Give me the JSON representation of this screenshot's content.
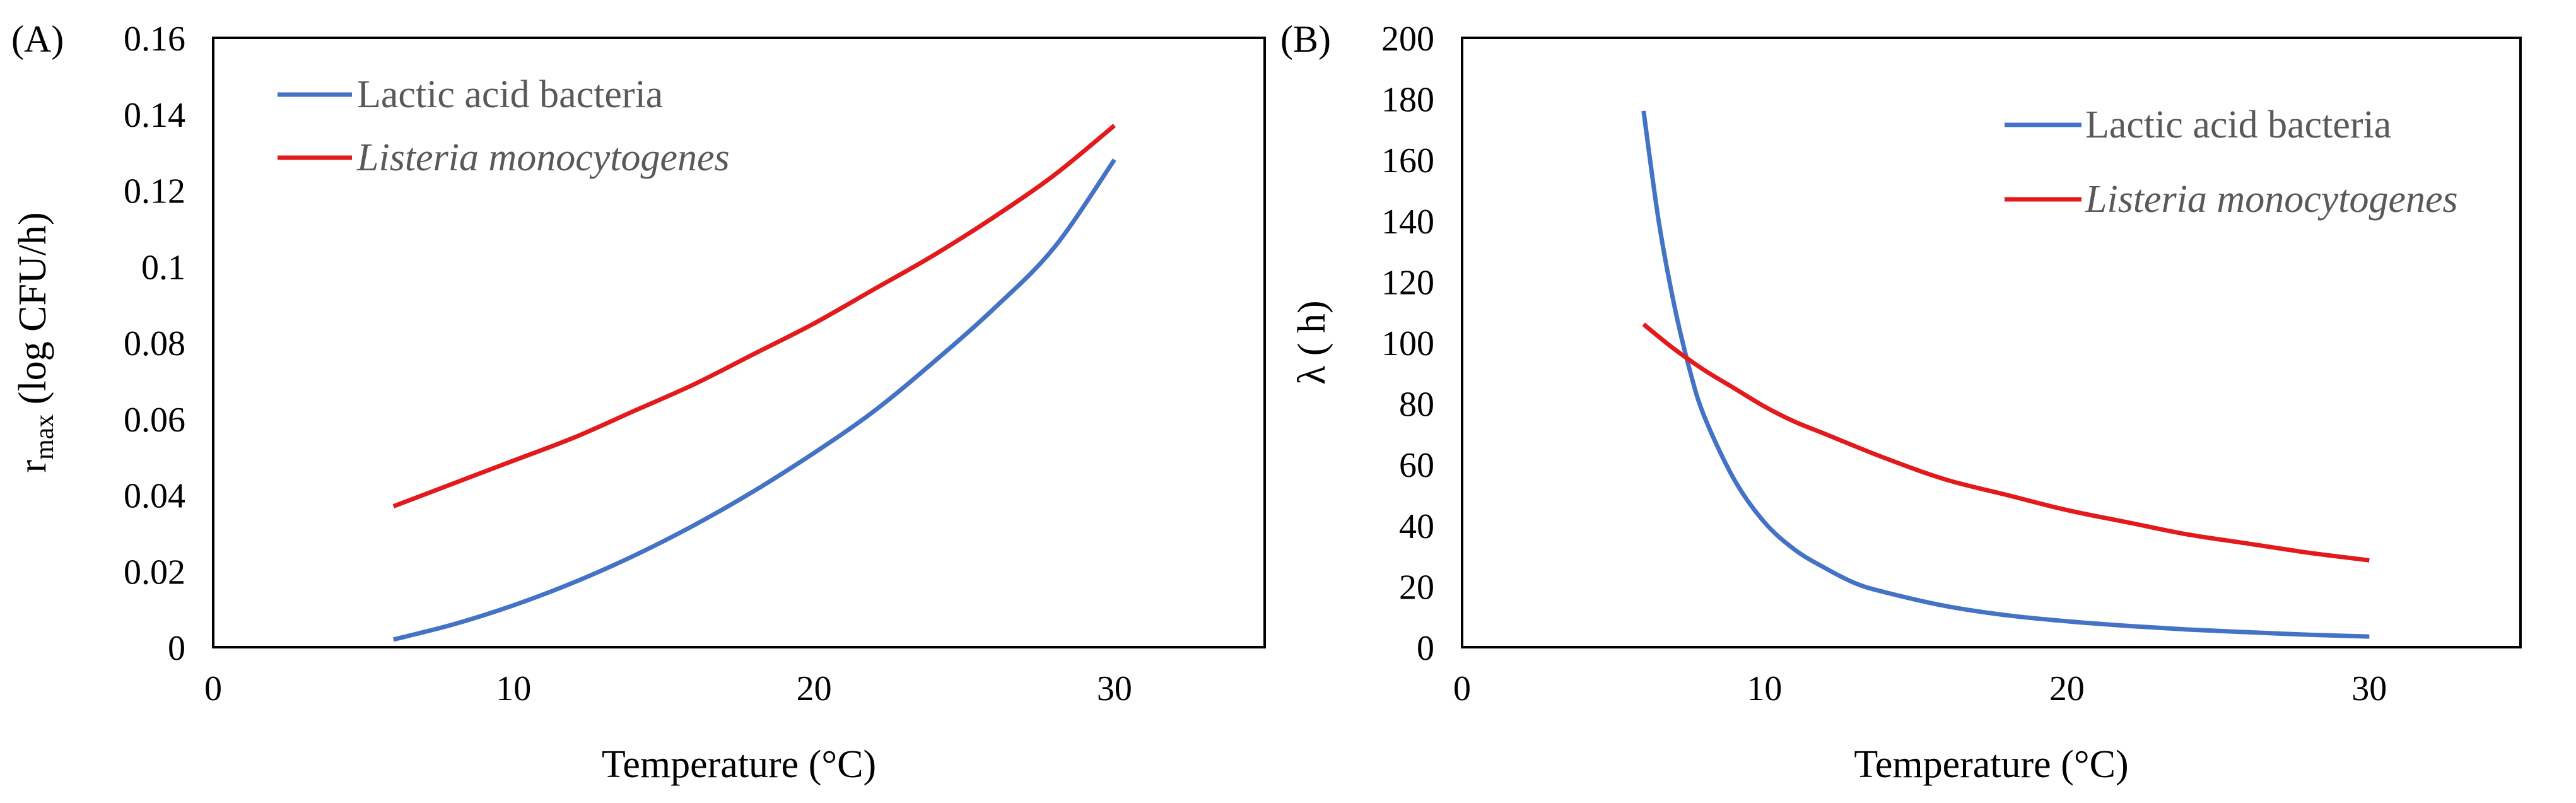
{
  "chart_data": [
    {
      "panel_label": "(A)",
      "type": "line",
      "xlabel": "Temperature (°C)",
      "ylabel_main": "r",
      "ylabel_sub": "max",
      "ylabel_rest": " (log CFU/h)",
      "xlim": [
        0,
        35
      ],
      "ylim": [
        0,
        0.16
      ],
      "xticks": [
        "0",
        "10",
        "20",
        "30"
      ],
      "xtick_values": [
        0,
        10,
        20,
        30
      ],
      "yticks": [
        "0",
        "0.02",
        "0.04",
        "0.06",
        "0.08",
        "0.1",
        "0.12",
        "0.14",
        "0.16"
      ],
      "ytick_values": [
        0,
        0.02,
        0.04,
        0.06,
        0.08,
        0.1,
        0.12,
        0.14,
        0.16
      ],
      "grid": false,
      "legend_position": "top-left",
      "series": [
        {
          "name": "Lactic acid bacteria",
          "italic": false,
          "color": "#4472C4",
          "x": [
            6,
            8,
            10,
            12,
            14,
            16,
            18,
            20,
            22,
            24,
            26,
            28,
            30
          ],
          "y": [
            0.002,
            0.006,
            0.011,
            0.017,
            0.024,
            0.032,
            0.041,
            0.051,
            0.062,
            0.075,
            0.089,
            0.105,
            0.128
          ]
        },
        {
          "name": "Listeria monocytogenes",
          "italic": true,
          "color": "#E31A1C",
          "x": [
            6,
            8,
            10,
            12,
            14,
            16,
            18,
            20,
            22,
            24,
            26,
            28,
            30
          ],
          "y": [
            0.037,
            0.043,
            0.049,
            0.055,
            0.062,
            0.069,
            0.077,
            0.085,
            0.094,
            0.103,
            0.113,
            0.124,
            0.137
          ]
        }
      ]
    },
    {
      "panel_label": "(B)",
      "type": "line",
      "xlabel": "Temperature (°C)",
      "ylabel_main": "λ ( h)",
      "ylabel_sub": "",
      "ylabel_rest": "",
      "xlim": [
        0,
        35
      ],
      "ylim": [
        0,
        200
      ],
      "xticks": [
        "0",
        "10",
        "20",
        "30"
      ],
      "xtick_values": [
        0,
        10,
        20,
        30
      ],
      "yticks": [
        "0",
        "20",
        "40",
        "60",
        "80",
        "100",
        "120",
        "140",
        "160",
        "180",
        "200"
      ],
      "ytick_values": [
        0,
        20,
        40,
        60,
        80,
        100,
        120,
        140,
        160,
        180,
        200
      ],
      "grid": false,
      "legend_position": "top-right",
      "series": [
        {
          "name": "Lactic acid bacteria",
          "italic": false,
          "color": "#4472C4",
          "x": [
            6,
            6.5,
            7,
            7.5,
            8,
            9,
            10,
            11,
            12,
            13,
            14,
            16,
            18,
            20,
            22,
            24,
            26,
            28,
            30
          ],
          "y": [
            176,
            140,
            113,
            92,
            76,
            55,
            41,
            32,
            26,
            21,
            18,
            13.5,
            10.5,
            8.5,
            7,
            5.8,
            4.9,
            4.1,
            3.5
          ]
        },
        {
          "name": "Listeria monocytogenes",
          "italic": true,
          "color": "#E31A1C",
          "x": [
            6,
            7,
            8,
            9,
            10,
            11,
            12,
            14,
            16,
            18,
            20,
            22,
            24,
            26,
            28,
            30
          ],
          "y": [
            106,
            98,
            91,
            85,
            79,
            74,
            70,
            62,
            55,
            50,
            45,
            41,
            37,
            34,
            31,
            28.5
          ]
        }
      ]
    }
  ]
}
